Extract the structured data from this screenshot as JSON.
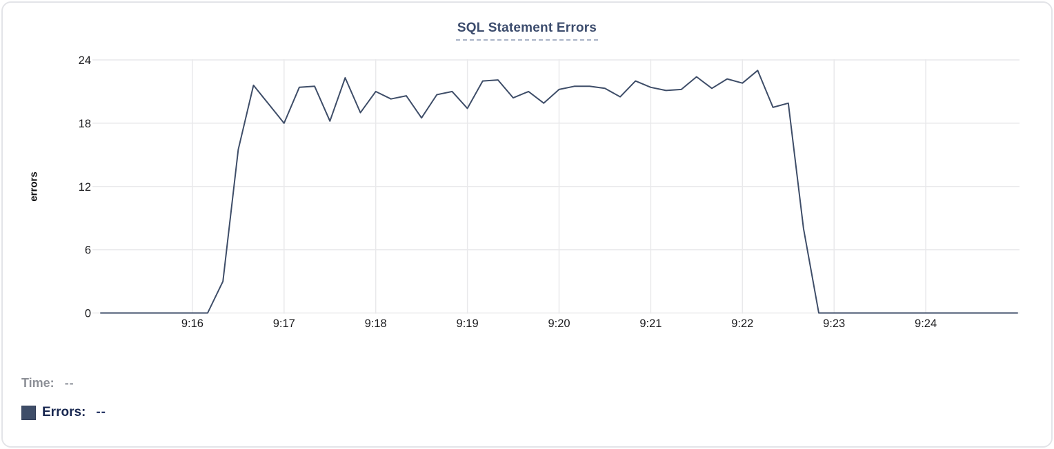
{
  "chart_data": {
    "type": "line",
    "title": "SQL Statement Errors",
    "ylabel": "errors",
    "grid": true,
    "x_axis": {
      "start": "9:15:00",
      "end": "9:25:00",
      "interval_seconds": 10,
      "tick_labels": [
        "9:16",
        "9:17",
        "9:18",
        "9:19",
        "9:20",
        "9:21",
        "9:22",
        "9:23",
        "9:24"
      ]
    },
    "y_axis": {
      "min": 0,
      "max": 24,
      "ticks": [
        0,
        6,
        12,
        18,
        24
      ]
    },
    "series": [
      {
        "name": "Errors",
        "values": [
          0,
          0,
          0,
          0,
          0,
          0,
          0,
          0,
          3,
          15.5,
          21.6,
          19.8,
          18,
          21.4,
          21.5,
          18.2,
          22.3,
          19,
          21,
          20.3,
          20.6,
          18.5,
          20.7,
          21,
          19.4,
          22,
          22.1,
          20.4,
          21,
          19.9,
          21.2,
          21.5,
          21.5,
          21.3,
          20.5,
          22,
          21.4,
          21.1,
          21.2,
          22.4,
          21.3,
          22.2,
          21.8,
          23,
          19.5,
          19.9,
          8,
          0,
          0,
          0,
          0,
          0,
          0,
          0,
          0,
          0,
          0,
          0,
          0,
          0,
          0
        ]
      }
    ],
    "legend_position": "bottom-left"
  },
  "colors": {
    "line": "#3e4d68",
    "grid": "#e9e9eb",
    "title": "#3c4c6d",
    "swatch": "#3e4d68"
  },
  "legend": {
    "time_label": "Time:",
    "time_value": "--",
    "errors_label": "Errors:",
    "errors_value": "--"
  }
}
